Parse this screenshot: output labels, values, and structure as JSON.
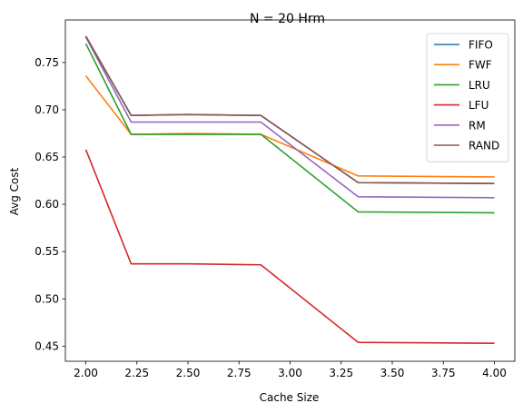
{
  "chart_data": {
    "type": "line",
    "title": "N = 20 Hrm",
    "xlabel": "Cache Size",
    "ylabel": "Avg Cost",
    "xlim": [
      1.9,
      4.1
    ],
    "ylim": [
      0.434,
      0.795
    ],
    "xticks": [
      "2.00",
      "2.25",
      "2.50",
      "2.75",
      "3.00",
      "3.25",
      "3.50",
      "3.75",
      "4.00"
    ],
    "yticks": [
      "0.45",
      "0.50",
      "0.55",
      "0.60",
      "0.65",
      "0.70",
      "0.75"
    ],
    "grid": false,
    "legend_position": "top-right",
    "x": [
      2.0,
      2.222,
      2.5,
      2.857,
      3.333,
      4.0
    ],
    "series": [
      {
        "name": "FIFO",
        "color": "#1f77b4",
        "values": [
          0.778,
          0.694,
          0.695,
          0.694,
          0.623,
          0.622
        ]
      },
      {
        "name": "FWF",
        "color": "#ff7f0e",
        "values": [
          0.736,
          0.674,
          0.675,
          0.674,
          0.63,
          0.629
        ]
      },
      {
        "name": "LRU",
        "color": "#2ca02c",
        "values": [
          0.77,
          0.674,
          0.674,
          0.674,
          0.592,
          0.591
        ]
      },
      {
        "name": "LFU",
        "color": "#d62728",
        "values": [
          0.658,
          0.537,
          0.537,
          0.536,
          0.454,
          0.453
        ]
      },
      {
        "name": "RM",
        "color": "#9467bd",
        "values": [
          0.777,
          0.687,
          0.687,
          0.687,
          0.608,
          0.607
        ]
      },
      {
        "name": "RAND",
        "color": "#8c564b",
        "values": [
          0.778,
          0.694,
          0.695,
          0.694,
          0.623,
          0.622
        ]
      }
    ]
  }
}
